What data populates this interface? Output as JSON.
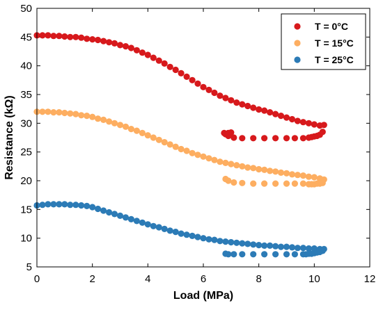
{
  "chart_data": {
    "type": "scatter",
    "title": "",
    "xlabel": "Load (MPa)",
    "ylabel": "Resistance (kΩ)",
    "xlim": [
      0,
      12
    ],
    "ylim": [
      5,
      50
    ],
    "xticks": [
      "0",
      "2",
      "4",
      "6",
      "8",
      "10",
      "12"
    ],
    "yticks": [
      "5",
      "10",
      "15",
      "20",
      "25",
      "30",
      "35",
      "40",
      "45",
      "50"
    ],
    "grid": false,
    "legend_position": "top-right",
    "series": [
      {
        "name": "T = 0°C",
        "color": "#d7191c",
        "x": [
          0.0,
          0.2,
          0.4,
          0.6,
          0.8,
          1.0,
          1.2,
          1.4,
          1.6,
          1.8,
          2.0,
          2.2,
          2.4,
          2.6,
          2.8,
          3.0,
          3.2,
          3.4,
          3.6,
          3.8,
          4.0,
          4.2,
          4.4,
          4.6,
          4.8,
          5.0,
          5.2,
          5.4,
          5.6,
          5.8,
          6.0,
          6.2,
          6.4,
          6.6,
          6.8,
          7.0,
          7.2,
          7.4,
          7.6,
          7.8,
          8.0,
          8.2,
          8.4,
          8.6,
          8.8,
          9.0,
          9.2,
          9.4,
          9.6,
          9.8,
          10.0,
          10.2,
          10.35,
          10.3,
          10.2,
          10.1,
          10.0,
          9.9,
          9.8,
          9.6,
          9.3,
          9.0,
          8.6,
          8.2,
          7.8,
          7.4,
          7.1,
          6.9,
          6.8,
          6.75,
          6.9,
          7.0
        ],
        "y": [
          45.3,
          45.3,
          45.3,
          45.2,
          45.2,
          45.1,
          45.0,
          45.0,
          44.9,
          44.7,
          44.6,
          44.5,
          44.3,
          44.1,
          43.9,
          43.6,
          43.4,
          43.1,
          42.7,
          42.3,
          41.9,
          41.4,
          40.9,
          40.4,
          39.8,
          39.3,
          38.7,
          38.1,
          37.5,
          36.9,
          36.3,
          35.8,
          35.3,
          34.8,
          34.4,
          34.0,
          33.6,
          33.3,
          33.0,
          32.7,
          32.4,
          32.2,
          31.9,
          31.6,
          31.3,
          31.0,
          30.7,
          30.4,
          30.2,
          30.0,
          29.8,
          29.6,
          29.7,
          28.5,
          28.0,
          27.8,
          27.7,
          27.6,
          27.5,
          27.4,
          27.4,
          27.4,
          27.4,
          27.4,
          27.4,
          27.4,
          27.5,
          27.8,
          28.1,
          28.3,
          28.3,
          28.4
        ]
      },
      {
        "name": "T = 15°C",
        "color": "#fdae61",
        "x": [
          0.0,
          0.2,
          0.4,
          0.6,
          0.8,
          1.0,
          1.2,
          1.4,
          1.6,
          1.8,
          2.0,
          2.2,
          2.4,
          2.6,
          2.8,
          3.0,
          3.2,
          3.4,
          3.6,
          3.8,
          4.0,
          4.2,
          4.4,
          4.6,
          4.8,
          5.0,
          5.2,
          5.4,
          5.6,
          5.8,
          6.0,
          6.2,
          6.4,
          6.6,
          6.8,
          7.0,
          7.2,
          7.4,
          7.6,
          7.8,
          8.0,
          8.2,
          8.4,
          8.6,
          8.8,
          9.0,
          9.2,
          9.4,
          9.6,
          9.8,
          10.0,
          10.2,
          10.35,
          10.3,
          10.2,
          10.1,
          10.0,
          9.9,
          9.8,
          9.6,
          9.3,
          9.0,
          8.6,
          8.2,
          7.8,
          7.4,
          7.1,
          6.9,
          6.8
        ],
        "y": [
          32.0,
          32.0,
          32.0,
          31.9,
          31.9,
          31.8,
          31.7,
          31.6,
          31.4,
          31.3,
          31.1,
          30.8,
          30.6,
          30.3,
          30.0,
          29.7,
          29.4,
          29.0,
          28.7,
          28.3,
          27.9,
          27.5,
          27.1,
          26.7,
          26.3,
          25.9,
          25.5,
          25.2,
          24.8,
          24.5,
          24.2,
          23.9,
          23.6,
          23.3,
          23.1,
          22.9,
          22.7,
          22.5,
          22.3,
          22.2,
          22.0,
          21.9,
          21.7,
          21.6,
          21.4,
          21.3,
          21.1,
          21.0,
          20.9,
          20.7,
          20.6,
          20.4,
          20.2,
          19.6,
          19.5,
          19.5,
          19.4,
          19.4,
          19.4,
          19.5,
          19.5,
          19.5,
          19.5,
          19.5,
          19.5,
          19.6,
          19.7,
          20.0,
          20.3
        ]
      },
      {
        "name": "T = 25°C",
        "color": "#2c7bb6",
        "x": [
          0.0,
          0.2,
          0.4,
          0.6,
          0.8,
          1.0,
          1.2,
          1.4,
          1.6,
          1.8,
          2.0,
          2.2,
          2.4,
          2.6,
          2.8,
          3.0,
          3.2,
          3.4,
          3.6,
          3.8,
          4.0,
          4.2,
          4.4,
          4.6,
          4.8,
          5.0,
          5.2,
          5.4,
          5.6,
          5.8,
          6.0,
          6.2,
          6.4,
          6.6,
          6.8,
          7.0,
          7.2,
          7.4,
          7.6,
          7.8,
          8.0,
          8.2,
          8.4,
          8.6,
          8.8,
          9.0,
          9.2,
          9.4,
          9.6,
          9.8,
          10.0,
          10.2,
          10.35,
          10.3,
          10.2,
          10.1,
          10.0,
          9.9,
          9.8,
          9.7,
          9.6,
          9.3,
          9.0,
          8.6,
          8.2,
          7.8,
          7.4,
          7.1,
          6.9,
          6.8
        ],
        "y": [
          15.7,
          15.8,
          15.9,
          15.9,
          15.9,
          15.9,
          15.8,
          15.8,
          15.7,
          15.6,
          15.4,
          15.1,
          14.8,
          14.5,
          14.2,
          13.9,
          13.6,
          13.3,
          13.0,
          12.7,
          12.4,
          12.1,
          11.9,
          11.6,
          11.3,
          11.1,
          10.8,
          10.6,
          10.4,
          10.2,
          10.0,
          9.8,
          9.7,
          9.5,
          9.4,
          9.3,
          9.2,
          9.1,
          9.0,
          8.9,
          8.8,
          8.7,
          8.7,
          8.6,
          8.5,
          8.5,
          8.4,
          8.3,
          8.3,
          8.2,
          8.2,
          8.1,
          8.1,
          7.8,
          7.6,
          7.5,
          7.4,
          7.3,
          7.3,
          7.2,
          7.2,
          7.2,
          7.2,
          7.2,
          7.2,
          7.2,
          7.2,
          7.2,
          7.2,
          7.3
        ]
      }
    ]
  }
}
